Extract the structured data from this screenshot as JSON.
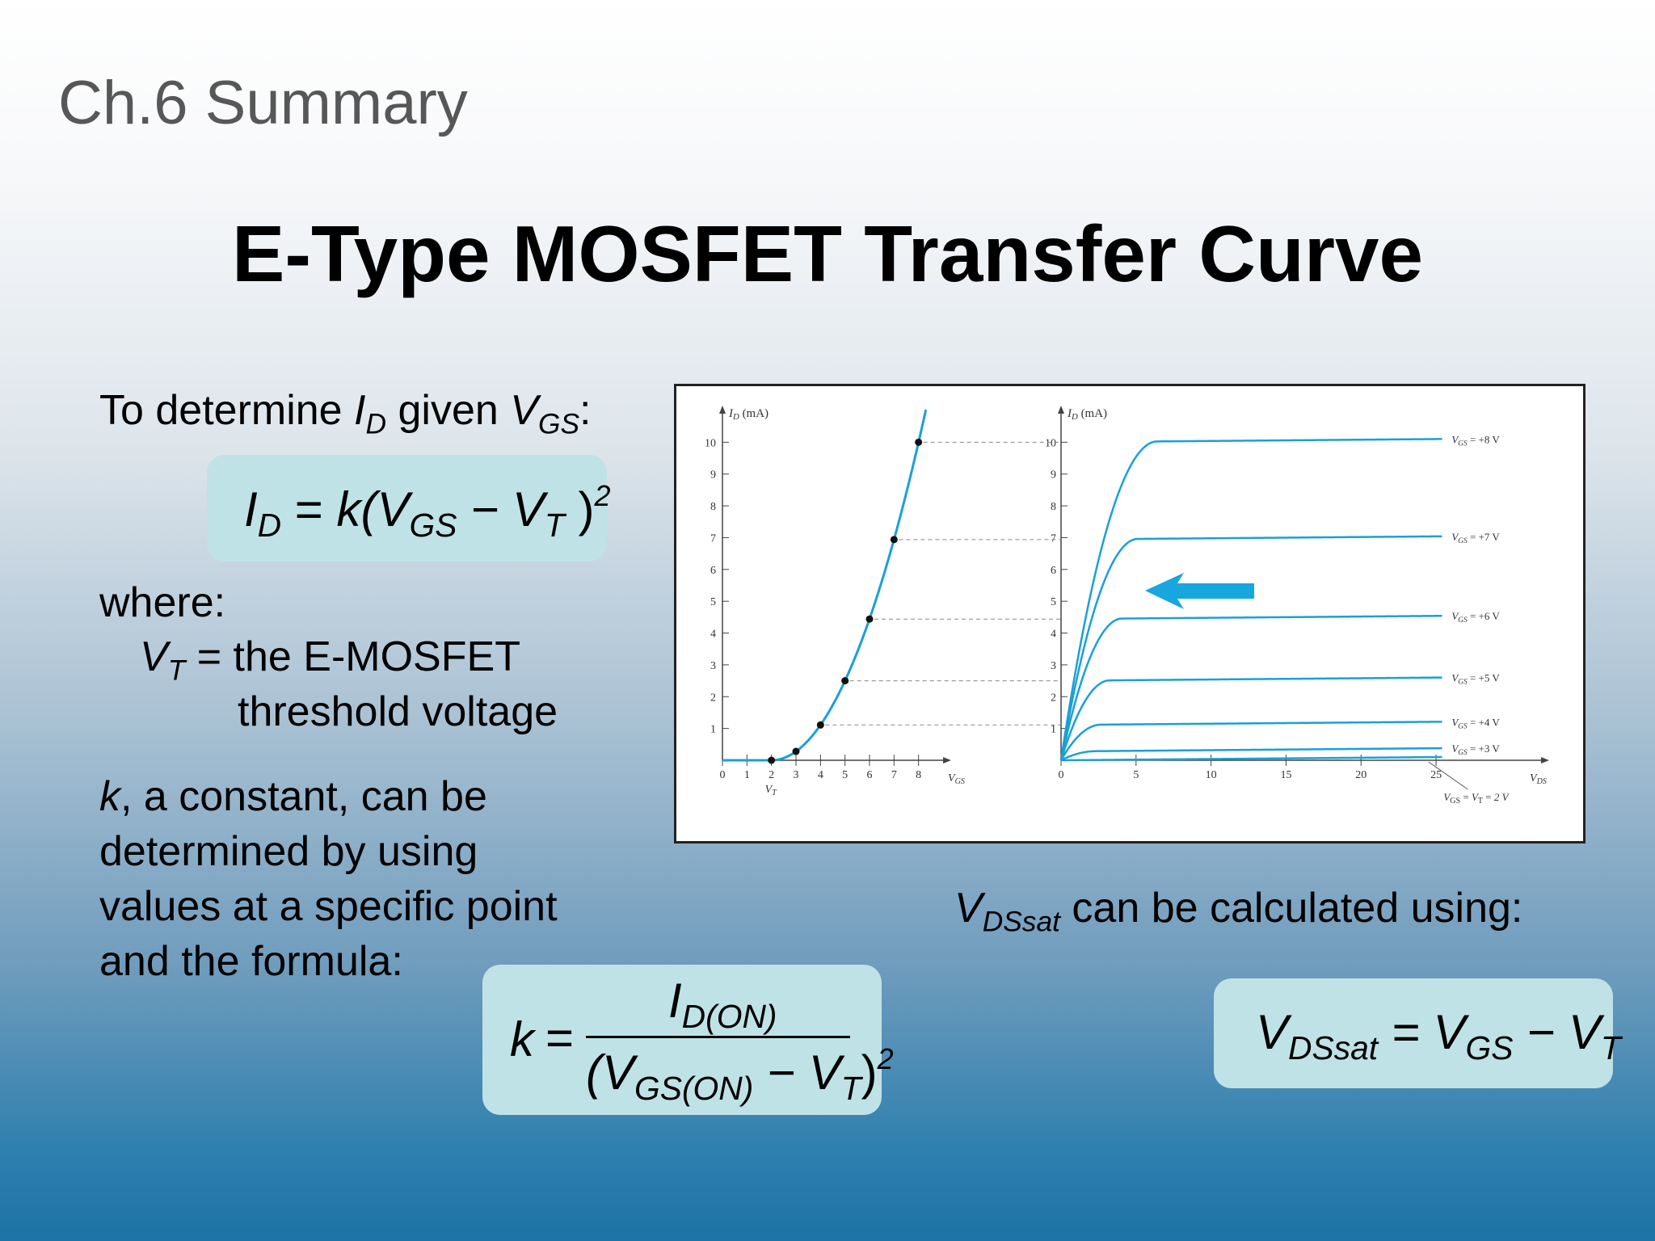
{
  "header": {
    "chapter": "Ch.6 Summary",
    "title": "E-Type MOSFET Transfer Curve"
  },
  "left": {
    "intro_pre": "To determine ",
    "intro_id": "I",
    "intro_id_sub": "D",
    "intro_mid": " given ",
    "intro_vgs": "V",
    "intro_vgs_sub": "GS",
    "intro_colon": ":",
    "where": "where:",
    "vt_symbol": "V",
    "vt_sub": "T",
    "vt_def_line1": " = the E-MOSFET",
    "vt_def_line2": "threshold voltage",
    "k_symbol": "k",
    "k_line1": ", a constant, can be",
    "k_line2": "determined by using",
    "k_line3": "values at a specific point",
    "k_line4": "and the formula:"
  },
  "formula_id": {
    "lhs": "I",
    "lhs_sub": "D",
    "eq": " = ",
    "k": "k",
    "open": "(V",
    "vgs_sub": "GS",
    "minus": " − V",
    "vt_sub": "T",
    "close": " )",
    "exp": "2"
  },
  "formula_k": {
    "k": "k",
    "eq": "=",
    "num": "I",
    "num_sub": "D(ON)",
    "den_open": "(V",
    "den_sub": "GS(ON)",
    "den_minus": " − V",
    "den_vt_sub": "T",
    "den_close": ")",
    "den_exp": "2"
  },
  "right": {
    "vdssat_symbol": "V",
    "vdssat_sub": "DSsat",
    "vdssat_text": " can be calculated using:"
  },
  "formula_vdssat": {
    "lhs": "V",
    "lhs_sub": "DSsat",
    "eq": " = V",
    "gs_sub": "GS",
    "minus": " − V",
    "vt_sub": "T"
  },
  "chart_data": [
    {
      "type": "line",
      "title": "",
      "ylabel": "I_D (mA)",
      "xlabel": "V_GS",
      "x_ticks": [
        "0",
        "1",
        "2",
        "3",
        "4",
        "5",
        "6",
        "7",
        "8"
      ],
      "y_ticks": [
        "1",
        "2",
        "3",
        "4",
        "5",
        "6",
        "7",
        "8",
        "9",
        "10"
      ],
      "xlim": [
        0,
        9
      ],
      "ylim": [
        0,
        11
      ],
      "threshold_label": "V_T",
      "threshold_x": 2,
      "x": [
        0,
        2,
        3,
        4,
        5,
        6,
        7,
        8
      ],
      "y": [
        0,
        0,
        0.278,
        1.11,
        2.5,
        4.44,
        6.94,
        10
      ],
      "marked_points": [
        [
          2,
          0
        ],
        [
          3,
          0.278
        ],
        [
          4,
          1.11
        ],
        [
          5,
          2.5
        ],
        [
          6,
          4.44
        ],
        [
          7,
          6.94
        ],
        [
          8,
          10
        ]
      ]
    },
    {
      "type": "line",
      "title": "",
      "ylabel": "I_D (mA)",
      "xlabel": "V_DS",
      "x_ticks": [
        "0",
        "5",
        "10",
        "15",
        "20",
        "25"
      ],
      "y_ticks": [
        "1",
        "2",
        "3",
        "4",
        "5",
        "6",
        "7",
        "8",
        "9",
        "10"
      ],
      "xlim": [
        0,
        32
      ],
      "ylim": [
        0,
        11
      ],
      "series": [
        {
          "name": "V_GS = +8 V",
          "sat": 10
        },
        {
          "name": "V_GS = +7 V",
          "sat": 6.94
        },
        {
          "name": "V_GS = +6 V",
          "sat": 4.44
        },
        {
          "name": "V_GS = +5 V",
          "sat": 2.5
        },
        {
          "name": "V_GS = +4 V",
          "sat": 1.11
        },
        {
          "name": "V_GS = +3 V",
          "sat": 0.278
        },
        {
          "name": "V_GS = V_T = 2 V",
          "sat": 0
        }
      ],
      "arrow": "left"
    }
  ],
  "colors": {
    "formula_bg": "#bfe2e6",
    "curve": "#1aa0d6",
    "arrow": "#18a6de"
  }
}
